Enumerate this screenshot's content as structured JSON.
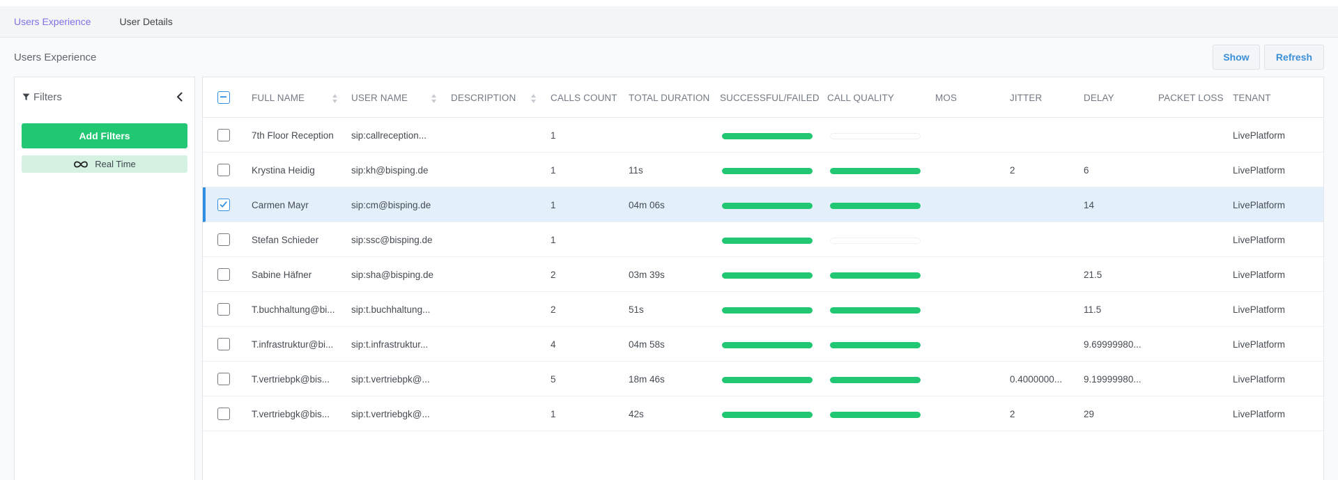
{
  "tabs": [
    {
      "label": "Users Experience",
      "active": true
    },
    {
      "label": "User Details",
      "active": false
    }
  ],
  "page": {
    "title": "Users Experience",
    "show_label": "Show",
    "refresh_label": "Refresh"
  },
  "filters": {
    "title": "Filters",
    "add_label": "Add Filters",
    "realtime_label": "Real Time"
  },
  "table": {
    "columns": [
      "FULL NAME",
      "USER NAME",
      "DESCRIPTION",
      "CALLS COUNT",
      "TOTAL DURATION",
      "SUCCESSFUL/FAILED",
      "CALL QUALITY",
      "MOS",
      "JITTER",
      "DELAY",
      "PACKET LOSS",
      "TENANT"
    ],
    "rows": [
      {
        "full_name": "7th Floor Reception",
        "user_name": "sip:callreception...",
        "description": "",
        "calls_count": "1",
        "total_duration": "",
        "success_level": 1.0,
        "quality_level": 0.0,
        "mos": "",
        "jitter": "",
        "delay": "",
        "packet_loss": "",
        "tenant": "LivePlatform",
        "selected": false
      },
      {
        "full_name": "Krystina Heidig",
        "user_name": "sip:kh@bisping.de",
        "description": "",
        "calls_count": "1",
        "total_duration": "11s",
        "success_level": 1.0,
        "quality_level": 1.0,
        "mos": "",
        "jitter": "2",
        "delay": "6",
        "packet_loss": "",
        "tenant": "LivePlatform",
        "selected": false
      },
      {
        "full_name": "Carmen Mayr",
        "user_name": "sip:cm@bisping.de",
        "description": "",
        "calls_count": "1",
        "total_duration": "04m 06s",
        "success_level": 1.0,
        "quality_level": 1.0,
        "mos": "",
        "jitter": "",
        "delay": "14",
        "packet_loss": "",
        "tenant": "LivePlatform",
        "selected": true
      },
      {
        "full_name": "Stefan Schieder",
        "user_name": "sip:ssc@bisping.de",
        "description": "",
        "calls_count": "1",
        "total_duration": "",
        "success_level": 1.0,
        "quality_level": 0.0,
        "mos": "",
        "jitter": "",
        "delay": "",
        "packet_loss": "",
        "tenant": "LivePlatform",
        "selected": false
      },
      {
        "full_name": "Sabine Häfner",
        "user_name": "sip:sha@bisping.de",
        "description": "",
        "calls_count": "2",
        "total_duration": "03m 39s",
        "success_level": 1.0,
        "quality_level": 1.0,
        "mos": "",
        "jitter": "",
        "delay": "21.5",
        "packet_loss": "",
        "tenant": "LivePlatform",
        "selected": false
      },
      {
        "full_name": "T.buchhaltung@bi...",
        "user_name": "sip:t.buchhaltung...",
        "description": "",
        "calls_count": "2",
        "total_duration": "51s",
        "success_level": 1.0,
        "quality_level": 1.0,
        "mos": "",
        "jitter": "",
        "delay": "11.5",
        "packet_loss": "",
        "tenant": "LivePlatform",
        "selected": false
      },
      {
        "full_name": "T.infrastruktur@bi...",
        "user_name": "sip:t.infrastruktur...",
        "description": "",
        "calls_count": "4",
        "total_duration": "04m 58s",
        "success_level": 1.0,
        "quality_level": 1.0,
        "mos": "",
        "jitter": "",
        "delay": "9.69999980...",
        "packet_loss": "",
        "tenant": "LivePlatform",
        "selected": false
      },
      {
        "full_name": "T.vertriebpk@bis...",
        "user_name": "sip:t.vertriebpk@...",
        "description": "",
        "calls_count": "5",
        "total_duration": "18m 46s",
        "success_level": 1.0,
        "quality_level": 1.0,
        "mos": "",
        "jitter": "0.4000000...",
        "delay": "9.19999980...",
        "packet_loss": "",
        "tenant": "LivePlatform",
        "selected": false
      },
      {
        "full_name": "T.vertriebgk@bis...",
        "user_name": "sip:t.vertriebgk@...",
        "description": "",
        "calls_count": "1",
        "total_duration": "42s",
        "success_level": 1.0,
        "quality_level": 1.0,
        "mos": "",
        "jitter": "2",
        "delay": "29",
        "packet_loss": "",
        "tenant": "LivePlatform",
        "selected": false
      }
    ]
  },
  "colors": {
    "accent": "#7c73e6",
    "primary": "#2f8ee0",
    "success": "#22c773",
    "selected_row": "#e3f0fb"
  },
  "icons": [
    "filter-icon",
    "chevron-left-icon",
    "infinity-icon",
    "sort-icon",
    "checkbox-indeterminate-icon",
    "check-icon"
  ]
}
